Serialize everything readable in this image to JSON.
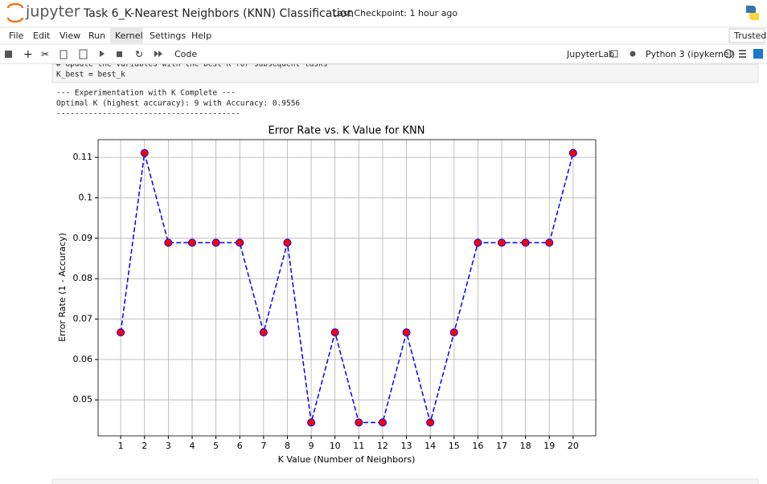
{
  "header": {
    "logo": "jupyter",
    "title": "Task 6_K-Nearest Neighbors (KNN) Classification",
    "checkpoint": "Last Checkpoint: 1 hour ago"
  },
  "menu": [
    "File",
    "Edit",
    "View",
    "Run",
    "Kernel",
    "Settings",
    "Help"
  ],
  "trusted": "Trusted",
  "toolbar": {
    "cell_type": "Code",
    "jupyterlab": "JupyterLab",
    "kernel": "Python 3 (ipykernel)"
  },
  "code": [
    "# Update the variables with the best K for subsequent tasks",
    "K_best = best_k"
  ],
  "output": [
    "--- Experimentation with K Complete ---",
    "Optimal K (highest accuracy): 9 with Accuracy: 0.9556",
    "----------------------------------------"
  ],
  "chart_data": {
    "type": "line",
    "title": "Error Rate vs. K Value for KNN",
    "x_label": "K Value (Number of Neighbors)",
    "y_label": "Error Rate (1 - Accuracy)",
    "x": [
      1,
      2,
      3,
      4,
      5,
      6,
      7,
      8,
      9,
      10,
      11,
      12,
      13,
      14,
      15,
      16,
      17,
      18,
      19,
      20
    ],
    "series": [
      {
        "values": [
          0.0667,
          0.1111,
          0.0889,
          0.0889,
          0.0889,
          0.0889,
          0.0667,
          0.0889,
          0.0444,
          0.0667,
          0.0444,
          0.0444,
          0.0667,
          0.0444,
          0.0667,
          0.0889,
          0.0889,
          0.0889,
          0.0889,
          0.1111
        ],
        "color": "#0000ff",
        "marker_color": "#ff0000",
        "linestyle": "dashed"
      }
    ],
    "xlim": [
      0.05,
      20.95
    ],
    "xticks": [
      1,
      2,
      3,
      4,
      5,
      6,
      7,
      8,
      9,
      10,
      11,
      12,
      13,
      14,
      15,
      16,
      17,
      18,
      19,
      20
    ],
    "ylim": [
      0.0411,
      0.1144
    ],
    "yticks": [
      0.05,
      0.06,
      0.07,
      0.08,
      0.09,
      0.1,
      0.11
    ],
    "grid": true
  }
}
